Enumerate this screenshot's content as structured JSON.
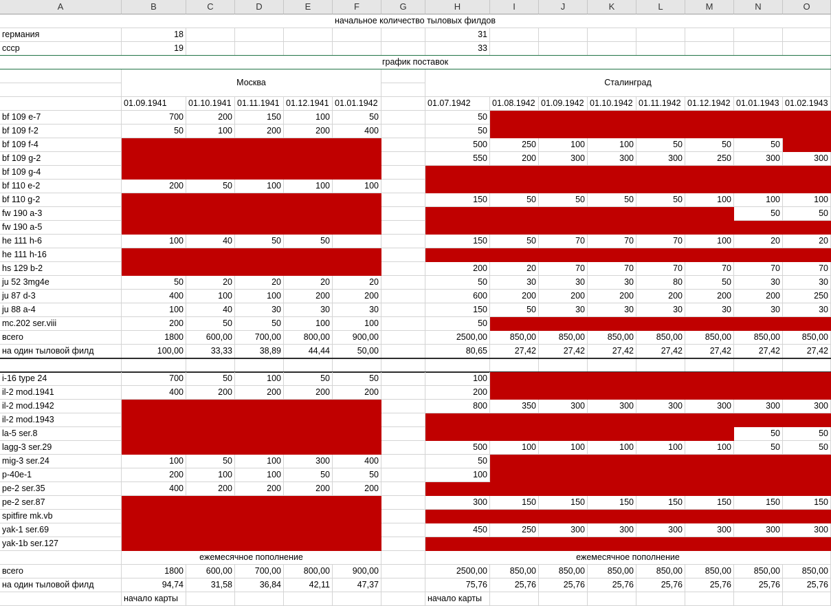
{
  "columns": [
    "A",
    "B",
    "C",
    "D",
    "E",
    "F",
    "G",
    "H",
    "I",
    "J",
    "K",
    "L",
    "M",
    "N",
    "O"
  ],
  "headers": {
    "initial_title": "начальное количество тыловых филдов",
    "schedule_title": "график поставок",
    "moscow": "Москва",
    "stalingrad": "Сталинград",
    "monthly": "ежемесячное пополнение",
    "map_start": "начало карты"
  },
  "initial": [
    {
      "name": "германия",
      "moscow": "18",
      "stalingrad": "31"
    },
    {
      "name": "ссср",
      "moscow": "19",
      "stalingrad": "33"
    }
  ],
  "moscow_dates": [
    "01.09.1941",
    "01.10.1941",
    "01.11.1941",
    "01.12.1941",
    "01.01.1942"
  ],
  "stalingrad_dates": [
    "01.07.1942",
    "01.08.1942",
    "01.09.1942",
    "01.10.1942",
    "01.11.1942",
    "01.12.1942",
    "01.01.1943",
    "01.02.1943"
  ],
  "german": [
    {
      "name": "bf 109 e-7",
      "m": [
        "700",
        "200",
        "150",
        "100",
        "50"
      ],
      "s": [
        "50",
        "0",
        "0",
        "0",
        "0",
        "0",
        "0",
        "0"
      ],
      "mr": [
        0,
        0,
        0,
        0,
        0
      ],
      "sr": [
        0,
        1,
        1,
        1,
        1,
        1,
        1,
        1
      ]
    },
    {
      "name": "bf 109 f-2",
      "m": [
        "50",
        "100",
        "200",
        "200",
        "400"
      ],
      "s": [
        "50",
        "0",
        "0",
        "0",
        "0",
        "0",
        "0",
        "0"
      ],
      "mr": [
        0,
        0,
        0,
        0,
        0
      ],
      "sr": [
        0,
        1,
        1,
        1,
        1,
        1,
        1,
        1
      ]
    },
    {
      "name": "bf 109 f-4",
      "m": [
        "0",
        "0",
        "0",
        "0",
        "0"
      ],
      "s": [
        "500",
        "250",
        "100",
        "100",
        "50",
        "50",
        "50",
        "0"
      ],
      "mr": [
        1,
        1,
        1,
        1,
        1
      ],
      "sr": [
        0,
        0,
        0,
        0,
        0,
        0,
        0,
        1
      ]
    },
    {
      "name": "bf 109 g-2",
      "m": [
        "0",
        "0",
        "0",
        "0",
        "0"
      ],
      "s": [
        "550",
        "200",
        "300",
        "300",
        "300",
        "250",
        "300",
        "300"
      ],
      "mr": [
        1,
        1,
        1,
        1,
        1
      ],
      "sr": [
        0,
        0,
        0,
        0,
        0,
        0,
        0,
        0
      ]
    },
    {
      "name": "bf 109 g-4",
      "m": [
        "0",
        "0",
        "0",
        "0",
        "0"
      ],
      "s": [
        "0",
        "0",
        "0",
        "0",
        "0",
        "0",
        "0",
        "0"
      ],
      "mr": [
        1,
        1,
        1,
        1,
        1
      ],
      "sr": [
        1,
        1,
        1,
        1,
        1,
        1,
        1,
        1
      ]
    },
    {
      "name": "bf 110 e-2",
      "m": [
        "200",
        "50",
        "100",
        "100",
        "100"
      ],
      "s": [
        "0",
        "0",
        "0",
        "0",
        "0",
        "0",
        "0",
        "0"
      ],
      "mr": [
        0,
        0,
        0,
        0,
        0
      ],
      "sr": [
        1,
        1,
        1,
        1,
        1,
        1,
        1,
        1
      ]
    },
    {
      "name": "bf 110 g-2",
      "m": [
        "0",
        "0",
        "0",
        "0",
        "0"
      ],
      "s": [
        "150",
        "50",
        "50",
        "50",
        "50",
        "100",
        "100",
        "100"
      ],
      "mr": [
        1,
        1,
        1,
        1,
        1
      ],
      "sr": [
        0,
        0,
        0,
        0,
        0,
        0,
        0,
        0
      ]
    },
    {
      "name": "fw 190 a-3",
      "m": [
        "0",
        "0",
        "0",
        "0",
        "0"
      ],
      "s": [
        "0",
        "0",
        "0",
        "0",
        "0",
        "0",
        "50",
        "50"
      ],
      "mr": [
        1,
        1,
        1,
        1,
        1
      ],
      "sr": [
        1,
        1,
        1,
        1,
        1,
        1,
        0,
        0
      ]
    },
    {
      "name": "fw 190 a-5",
      "m": [
        "0",
        "0",
        "0",
        "0",
        "0"
      ],
      "s": [
        "0",
        "0",
        "0",
        "0",
        "0",
        "0",
        "0",
        "0"
      ],
      "mr": [
        1,
        1,
        1,
        1,
        1
      ],
      "sr": [
        1,
        1,
        1,
        1,
        1,
        1,
        1,
        1
      ]
    },
    {
      "name": "he 111 h-6",
      "m": [
        "100",
        "40",
        "50",
        "50",
        ""
      ],
      "s": [
        "150",
        "50",
        "70",
        "70",
        "70",
        "100",
        "20",
        "20"
      ],
      "mr": [
        0,
        0,
        0,
        0,
        0
      ],
      "sr": [
        0,
        0,
        0,
        0,
        0,
        0,
        0,
        0
      ]
    },
    {
      "name": "he 111 h-16",
      "m": [
        "0",
        "0",
        "0",
        "0",
        "0"
      ],
      "s": [
        "0",
        "0",
        "0",
        "0",
        "0",
        "0",
        "0",
        "0"
      ],
      "mr": [
        1,
        1,
        1,
        1,
        1
      ],
      "sr": [
        1,
        1,
        1,
        1,
        1,
        1,
        1,
        1
      ]
    },
    {
      "name": "hs 129 b-2",
      "m": [
        "0",
        "0",
        "0",
        "0",
        "0"
      ],
      "s": [
        "200",
        "20",
        "70",
        "70",
        "70",
        "70",
        "70",
        "70"
      ],
      "mr": [
        1,
        1,
        1,
        1,
        1
      ],
      "sr": [
        0,
        0,
        0,
        0,
        0,
        0,
        0,
        0
      ]
    },
    {
      "name": "ju 52 3mg4e",
      "m": [
        "50",
        "20",
        "20",
        "20",
        "20"
      ],
      "s": [
        "50",
        "30",
        "30",
        "30",
        "80",
        "50",
        "30",
        "30"
      ],
      "mr": [
        0,
        0,
        0,
        0,
        0
      ],
      "sr": [
        0,
        0,
        0,
        0,
        0,
        0,
        0,
        0
      ]
    },
    {
      "name": "ju 87 d-3",
      "m": [
        "400",
        "100",
        "100",
        "200",
        "200"
      ],
      "s": [
        "600",
        "200",
        "200",
        "200",
        "200",
        "200",
        "200",
        "250"
      ],
      "mr": [
        0,
        0,
        0,
        0,
        0
      ],
      "sr": [
        0,
        0,
        0,
        0,
        0,
        0,
        0,
        0
      ]
    },
    {
      "name": "ju 88 a-4",
      "m": [
        "100",
        "40",
        "30",
        "30",
        "30"
      ],
      "s": [
        "150",
        "50",
        "30",
        "30",
        "30",
        "30",
        "30",
        "30"
      ],
      "mr": [
        0,
        0,
        0,
        0,
        0
      ],
      "sr": [
        0,
        0,
        0,
        0,
        0,
        0,
        0,
        0
      ]
    },
    {
      "name": "mc.202 ser.viii",
      "m": [
        "200",
        "50",
        "50",
        "100",
        "100"
      ],
      "s": [
        "50",
        "0",
        "0",
        "0",
        "0",
        "0",
        "0",
        "0"
      ],
      "mr": [
        0,
        0,
        0,
        0,
        0
      ],
      "sr": [
        0,
        1,
        1,
        1,
        1,
        1,
        1,
        1
      ]
    }
  ],
  "german_total": {
    "name": "всего",
    "m": [
      "1800",
      "600,00",
      "700,00",
      "800,00",
      "900,00"
    ],
    "s": [
      "2500,00",
      "850,00",
      "850,00",
      "850,00",
      "850,00",
      "850,00",
      "850,00",
      "850,00"
    ]
  },
  "german_per": {
    "name": "на один тыловой филд",
    "m": [
      "100,00",
      "33,33",
      "38,89",
      "44,44",
      "50,00"
    ],
    "s": [
      "80,65",
      "27,42",
      "27,42",
      "27,42",
      "27,42",
      "27,42",
      "27,42",
      "27,42"
    ]
  },
  "soviet": [
    {
      "name": "i-16 type 24",
      "m": [
        "700",
        "50",
        "100",
        "50",
        "50"
      ],
      "s": [
        "100",
        "0",
        "0",
        "0",
        "0",
        "0",
        "0",
        "0"
      ],
      "mr": [
        0,
        0,
        0,
        0,
        0
      ],
      "sr": [
        0,
        1,
        1,
        1,
        1,
        1,
        1,
        1
      ]
    },
    {
      "name": "il-2 mod.1941",
      "m": [
        "400",
        "200",
        "200",
        "200",
        "200"
      ],
      "s": [
        "200",
        "0",
        "0",
        "0",
        "0",
        "0",
        "0",
        "0"
      ],
      "mr": [
        0,
        0,
        0,
        0,
        0
      ],
      "sr": [
        0,
        1,
        1,
        1,
        1,
        1,
        1,
        1
      ]
    },
    {
      "name": "il-2 mod.1942",
      "m": [
        "0",
        "0",
        "0",
        "0",
        "0"
      ],
      "s": [
        "800",
        "350",
        "300",
        "300",
        "300",
        "300",
        "300",
        "300"
      ],
      "mr": [
        1,
        1,
        1,
        1,
        1
      ],
      "sr": [
        0,
        0,
        0,
        0,
        0,
        0,
        0,
        0
      ]
    },
    {
      "name": "il-2 mod.1943",
      "m": [
        "0",
        "0",
        "0",
        "0",
        "0"
      ],
      "s": [
        "0",
        "0",
        "0",
        "0",
        "0",
        "0",
        "0",
        "0"
      ],
      "mr": [
        1,
        1,
        1,
        1,
        1
      ],
      "sr": [
        1,
        1,
        1,
        1,
        1,
        1,
        1,
        1
      ]
    },
    {
      "name": "la-5 ser.8",
      "m": [
        "0",
        "0",
        "0",
        "0",
        "0"
      ],
      "s": [
        "0",
        "0",
        "0",
        "0",
        "0",
        "0",
        "50",
        "50"
      ],
      "mr": [
        1,
        1,
        1,
        1,
        1
      ],
      "sr": [
        1,
        1,
        1,
        1,
        1,
        1,
        0,
        0
      ]
    },
    {
      "name": "lagg-3 ser.29",
      "m": [
        "0",
        "0",
        "0",
        "0",
        "0"
      ],
      "s": [
        "500",
        "100",
        "100",
        "100",
        "100",
        "100",
        "50",
        "50"
      ],
      "mr": [
        1,
        1,
        1,
        1,
        1
      ],
      "sr": [
        0,
        0,
        0,
        0,
        0,
        0,
        0,
        0
      ]
    },
    {
      "name": "mig-3 ser.24",
      "m": [
        "100",
        "50",
        "100",
        "300",
        "400"
      ],
      "s": [
        "50",
        "0",
        "0",
        "0",
        "0",
        "0",
        "0",
        "0"
      ],
      "mr": [
        0,
        0,
        0,
        0,
        0
      ],
      "sr": [
        0,
        1,
        1,
        1,
        1,
        1,
        1,
        1
      ]
    },
    {
      "name": "p-40e-1",
      "m": [
        "200",
        "100",
        "100",
        "50",
        "50"
      ],
      "s": [
        "100",
        "0",
        "0",
        "0",
        "0",
        "0",
        "0",
        "0"
      ],
      "mr": [
        0,
        0,
        0,
        0,
        0
      ],
      "sr": [
        0,
        1,
        1,
        1,
        1,
        1,
        1,
        1
      ]
    },
    {
      "name": "pe-2 ser.35",
      "m": [
        "400",
        "200",
        "200",
        "200",
        "200"
      ],
      "s": [
        "0",
        "0",
        "0",
        "0",
        "0",
        "0",
        "0",
        "0"
      ],
      "mr": [
        0,
        0,
        0,
        0,
        0
      ],
      "sr": [
        1,
        1,
        1,
        1,
        1,
        1,
        1,
        1
      ]
    },
    {
      "name": "pe-2 ser.87",
      "m": [
        "0",
        "0",
        "0",
        "0",
        "0"
      ],
      "s": [
        "300",
        "150",
        "150",
        "150",
        "150",
        "150",
        "150",
        "150"
      ],
      "mr": [
        1,
        1,
        1,
        1,
        1
      ],
      "sr": [
        0,
        0,
        0,
        0,
        0,
        0,
        0,
        0
      ]
    },
    {
      "name": "spitfire mk.vb",
      "m": [
        "0",
        "0",
        "0",
        "0",
        "0"
      ],
      "s": [
        "0",
        "0",
        "0",
        "0",
        "0",
        "0",
        "0",
        "0"
      ],
      "mr": [
        1,
        1,
        1,
        1,
        1
      ],
      "sr": [
        1,
        1,
        1,
        1,
        1,
        1,
        1,
        1
      ]
    },
    {
      "name": "yak-1 ser.69",
      "m": [
        "0",
        "0",
        "0",
        "0",
        "0"
      ],
      "s": [
        "450",
        "250",
        "300",
        "300",
        "300",
        "300",
        "300",
        "300"
      ],
      "mr": [
        1,
        1,
        1,
        1,
        1
      ],
      "sr": [
        0,
        0,
        0,
        0,
        0,
        0,
        0,
        0
      ]
    },
    {
      "name": "yak-1b ser.127",
      "m": [
        "0",
        "0",
        "0",
        "0",
        "0"
      ],
      "s": [
        "0",
        "0",
        "0",
        "0",
        "0",
        "0",
        "0",
        "0"
      ],
      "mr": [
        1,
        1,
        1,
        1,
        1
      ],
      "sr": [
        1,
        1,
        1,
        1,
        1,
        1,
        1,
        1
      ]
    }
  ],
  "soviet_total": {
    "name": "всего",
    "m": [
      "1800",
      "600,00",
      "700,00",
      "800,00",
      "900,00"
    ],
    "s": [
      "2500,00",
      "850,00",
      "850,00",
      "850,00",
      "850,00",
      "850,00",
      "850,00",
      "850,00"
    ]
  },
  "soviet_per": {
    "name": "на один тыловой филд",
    "m": [
      "94,74",
      "31,58",
      "36,84",
      "42,11",
      "47,37"
    ],
    "s": [
      "75,76",
      "25,76",
      "25,76",
      "25,76",
      "25,76",
      "25,76",
      "25,76",
      "25,76"
    ]
  },
  "colors": {
    "highlight": "#c00000",
    "header_bg": "#e6e6e6",
    "gridline": "#d4d4d4"
  }
}
